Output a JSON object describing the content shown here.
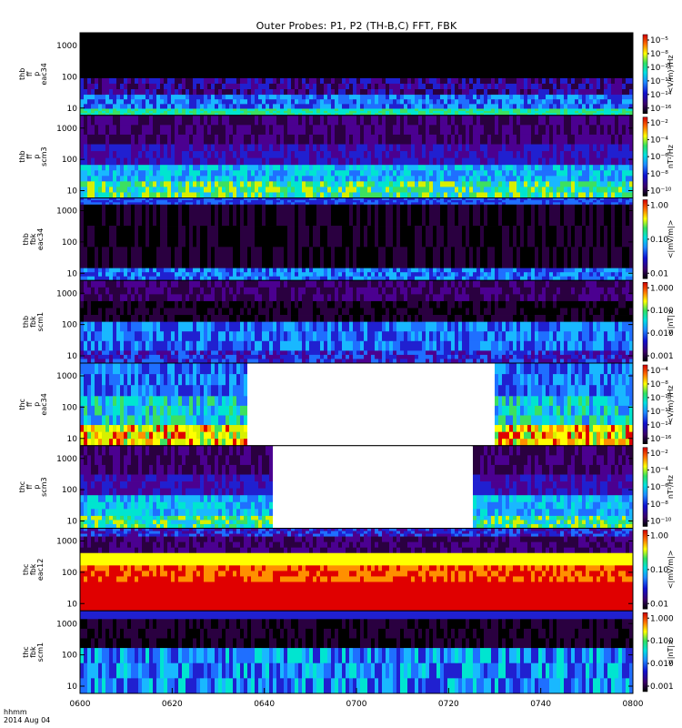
{
  "title": "Outer Probes: P1, P2 (TH-B,C) FFT, FBK",
  "footer": {
    "line1": "hhmm",
    "line2": "2014 Aug 04"
  },
  "chart_data": {
    "type": "heatmap",
    "x_ticks": [
      "0600",
      "0620",
      "0640",
      "0700",
      "0720",
      "0740",
      "0800"
    ],
    "panels": [
      {
        "id": "thb-ffp-eac34",
        "ylabel": [
          "thb",
          "ff",
          "p",
          "eac34"
        ],
        "yticks": [
          "1000",
          "100",
          "10"
        ],
        "cbar_label": "<V/m)²/Hz",
        "cbar_ticks": [
          "10⁻⁵",
          "10⁻⁸",
          "10⁻¹¹",
          "10⁻¹³",
          "10⁻¹⁴",
          "10⁻¹⁶"
        ],
        "gap": null
      },
      {
        "id": "thb-ffp-scm3",
        "ylabel": [
          "thb",
          "ff",
          "p",
          "scm3"
        ],
        "yticks": [
          "1000",
          "100",
          "10"
        ],
        "cbar_label": "nT²/Hz",
        "cbar_ticks": [
          "10⁻²",
          "10⁻⁴",
          "10⁻⁶",
          "10⁻⁸",
          "10⁻¹⁰"
        ],
        "gap": null
      },
      {
        "id": "thb-fbk-eac34",
        "ylabel": [
          "thb",
          "fbk",
          "eac34"
        ],
        "yticks": [
          "1000",
          "100",
          "10"
        ],
        "cbar_label": "<|mV/m|>",
        "cbar_ticks": [
          "1.00",
          "0.10",
          "0.01"
        ],
        "gap": null
      },
      {
        "id": "thb-fbk-scm1",
        "ylabel": [
          "thb",
          "fbk",
          "scm1"
        ],
        "yticks": [
          "1000",
          "100",
          "10"
        ],
        "cbar_label": "<|nT|>",
        "cbar_ticks": [
          "1.000",
          "0.100",
          "0.010",
          "0.001"
        ],
        "gap": null
      },
      {
        "id": "thc-ffp-eac34",
        "ylabel": [
          "thc",
          "ff",
          "p",
          "eac34"
        ],
        "yticks": [
          "1000",
          "100",
          "10"
        ],
        "cbar_label": "<V/m)²/Hz",
        "cbar_ticks": [
          "10⁻⁴",
          "10⁻⁸",
          "10⁻¹⁰",
          "10⁻¹²",
          "10⁻¹⁴",
          "10⁻¹⁶"
        ],
        "gap": [
          "0637",
          "0730"
        ]
      },
      {
        "id": "thc-ffp-scm3",
        "ylabel": [
          "thc",
          "ff",
          "p",
          "scm3"
        ],
        "yticks": [
          "1000",
          "100",
          "10"
        ],
        "cbar_label": "nT²/Hz",
        "cbar_ticks": [
          "10⁻²",
          "10⁻⁴",
          "10⁻⁶",
          "10⁻⁸",
          "10⁻¹⁰"
        ],
        "gap": [
          "0642",
          "0725"
        ]
      },
      {
        "id": "thc-fbk-eac12",
        "ylabel": [
          "thc",
          "fbk",
          "eac12"
        ],
        "yticks": [
          "1000",
          "100",
          "10"
        ],
        "cbar_label": "<|mV/m|>",
        "cbar_ticks": [
          "1.00",
          "0.10",
          "0.01"
        ],
        "gap": null
      },
      {
        "id": "thc-fbk-scm1",
        "ylabel": [
          "thc",
          "fbk",
          "scm1"
        ],
        "yticks": [
          "1000",
          "100",
          "10"
        ],
        "cbar_label": "<|nT|>",
        "cbar_ticks": [
          "1.000",
          "0.100",
          "0.010",
          "0.001"
        ],
        "gap": null
      }
    ]
  }
}
